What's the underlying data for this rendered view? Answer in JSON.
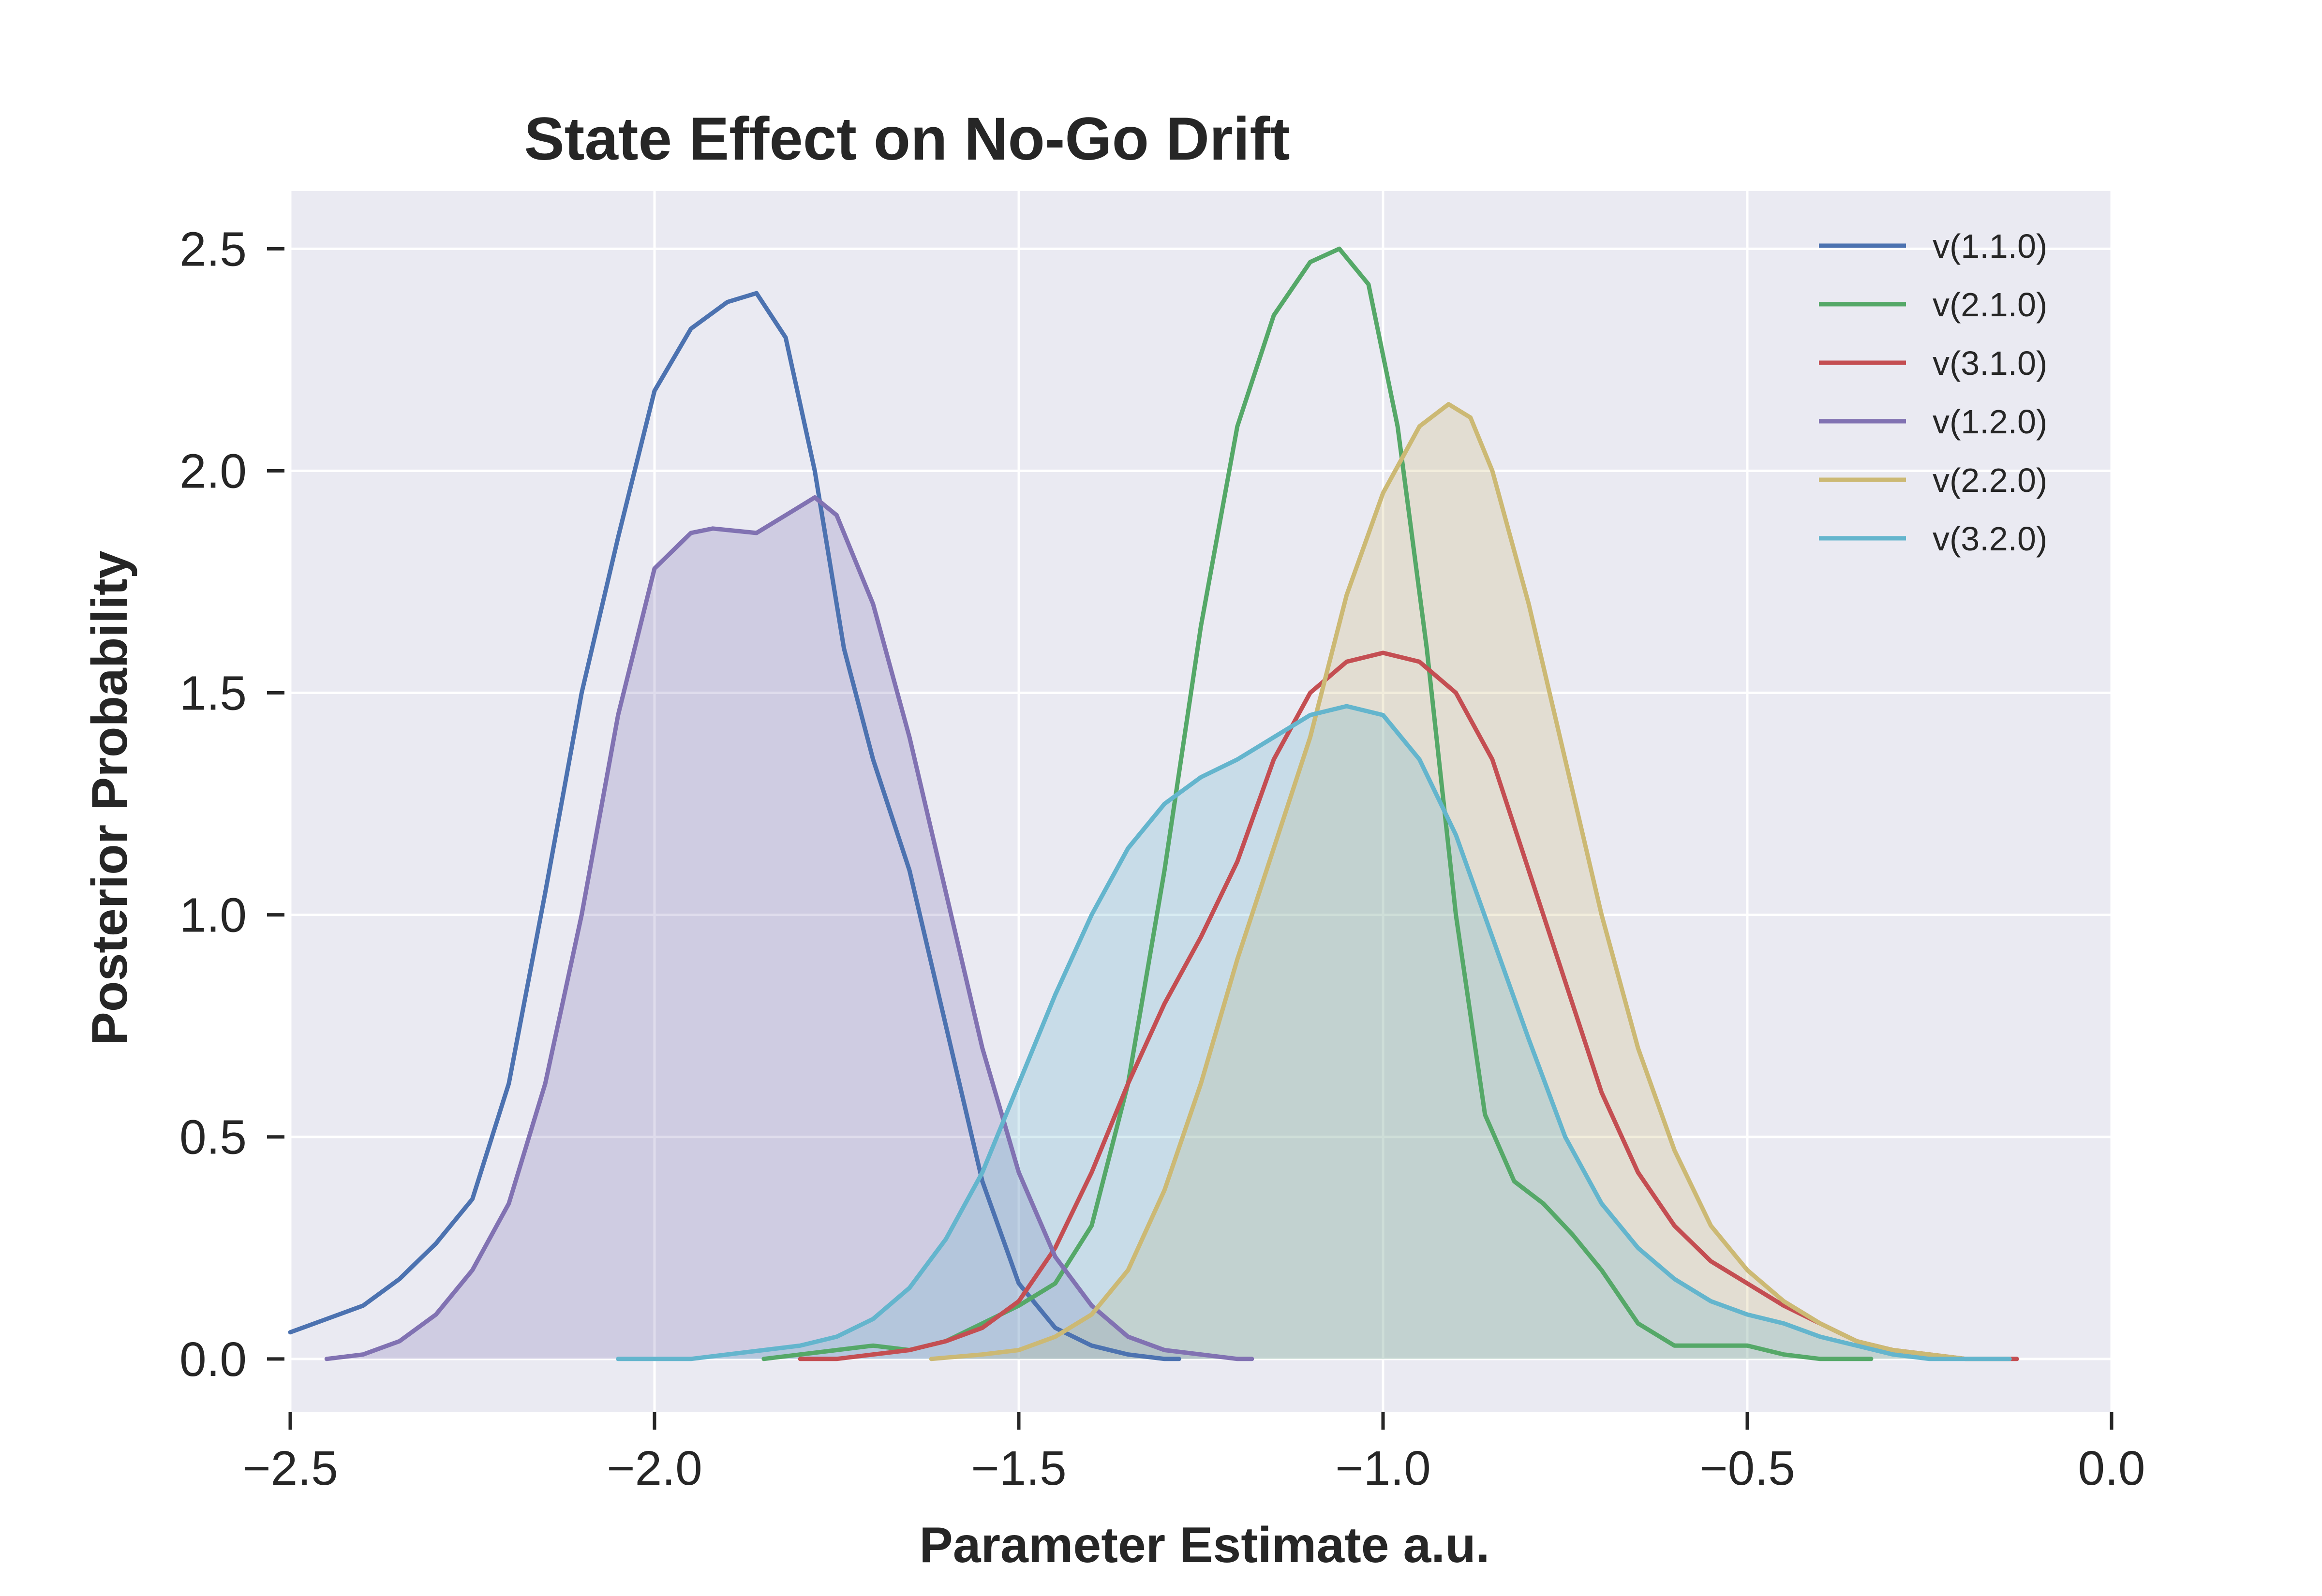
{
  "chart_data": {
    "type": "line",
    "title": "State Effect on No-Go Drift",
    "xlabel": "Parameter Estimate a.u.",
    "ylabel": "Posterior Probability",
    "xlim": [
      -2.5,
      0.0
    ],
    "ylim": [
      -0.12,
      2.63
    ],
    "xticks": [
      -2.5,
      -2.0,
      -1.5,
      -1.0,
      -0.5,
      0.0
    ],
    "xtick_labels": [
      "−2.5",
      "−2.0",
      "−1.5",
      "−1.0",
      "−0.5",
      "0.0"
    ],
    "yticks": [
      0.0,
      0.5,
      1.0,
      1.5,
      2.0,
      2.5
    ],
    "ytick_labels": [
      "0.0",
      "0.5",
      "1.0",
      "1.5",
      "2.0",
      "2.5"
    ],
    "grid": true,
    "background": "#eaeaf2",
    "legend_position": "top-right",
    "series": [
      {
        "name": "v(1.1.0)",
        "color": "#4c72b0",
        "filled": false,
        "x": [
          -2.5,
          -2.45,
          -2.4,
          -2.35,
          -2.3,
          -2.25,
          -2.2,
          -2.15,
          -2.1,
          -2.05,
          -2.0,
          -1.95,
          -1.9,
          -1.86,
          -1.82,
          -1.78,
          -1.74,
          -1.7,
          -1.65,
          -1.6,
          -1.55,
          -1.5,
          -1.45,
          -1.4,
          -1.35,
          -1.3,
          -1.28
        ],
        "y": [
          0.06,
          0.09,
          0.12,
          0.18,
          0.26,
          0.36,
          0.62,
          1.05,
          1.5,
          1.85,
          2.18,
          2.32,
          2.38,
          2.4,
          2.3,
          2.0,
          1.6,
          1.35,
          1.1,
          0.75,
          0.4,
          0.17,
          0.07,
          0.03,
          0.01,
          0.0,
          0.0
        ]
      },
      {
        "name": "v(2.1.0)",
        "color": "#55a868",
        "filled": false,
        "x": [
          -1.85,
          -1.8,
          -1.75,
          -1.7,
          -1.65,
          -1.6,
          -1.55,
          -1.5,
          -1.45,
          -1.4,
          -1.35,
          -1.3,
          -1.25,
          -1.2,
          -1.15,
          -1.1,
          -1.06,
          -1.02,
          -0.98,
          -0.94,
          -0.9,
          -0.86,
          -0.82,
          -0.78,
          -0.74,
          -0.7,
          -0.65,
          -0.6,
          -0.55,
          -0.5,
          -0.45,
          -0.4,
          -0.35,
          -0.33
        ],
        "y": [
          0.0,
          0.01,
          0.02,
          0.03,
          0.02,
          0.04,
          0.08,
          0.12,
          0.17,
          0.3,
          0.62,
          1.1,
          1.65,
          2.1,
          2.35,
          2.47,
          2.5,
          2.42,
          2.1,
          1.6,
          1.0,
          0.55,
          0.4,
          0.35,
          0.28,
          0.2,
          0.08,
          0.03,
          0.03,
          0.03,
          0.01,
          0.0,
          0.0,
          0.0
        ]
      },
      {
        "name": "v(3.1.0)",
        "color": "#c44e52",
        "filled": false,
        "x": [
          -1.8,
          -1.75,
          -1.7,
          -1.65,
          -1.6,
          -1.55,
          -1.5,
          -1.45,
          -1.4,
          -1.35,
          -1.3,
          -1.25,
          -1.2,
          -1.15,
          -1.1,
          -1.05,
          -1.0,
          -0.95,
          -0.9,
          -0.85,
          -0.8,
          -0.75,
          -0.7,
          -0.65,
          -0.6,
          -0.55,
          -0.5,
          -0.45,
          -0.4,
          -0.35,
          -0.3,
          -0.25,
          -0.2,
          -0.15,
          -0.13
        ],
        "y": [
          0.0,
          0.0,
          0.01,
          0.02,
          0.04,
          0.07,
          0.13,
          0.25,
          0.42,
          0.62,
          0.8,
          0.95,
          1.12,
          1.35,
          1.5,
          1.57,
          1.59,
          1.57,
          1.5,
          1.35,
          1.1,
          0.85,
          0.6,
          0.42,
          0.3,
          0.22,
          0.17,
          0.12,
          0.08,
          0.04,
          0.02,
          0.01,
          0.0,
          0.0,
          0.0
        ]
      },
      {
        "name": "v(1.2.0)",
        "color": "#8172b2",
        "filled": true,
        "x": [
          -2.45,
          -2.4,
          -2.35,
          -2.3,
          -2.25,
          -2.2,
          -2.15,
          -2.1,
          -2.05,
          -2.0,
          -1.95,
          -1.92,
          -1.86,
          -1.82,
          -1.78,
          -1.75,
          -1.7,
          -1.65,
          -1.6,
          -1.55,
          -1.5,
          -1.45,
          -1.4,
          -1.35,
          -1.3,
          -1.25,
          -1.2,
          -1.18
        ],
        "y": [
          0.0,
          0.01,
          0.04,
          0.1,
          0.2,
          0.35,
          0.62,
          1.0,
          1.45,
          1.78,
          1.86,
          1.87,
          1.86,
          1.9,
          1.94,
          1.9,
          1.7,
          1.4,
          1.05,
          0.7,
          0.42,
          0.23,
          0.12,
          0.05,
          0.02,
          0.01,
          0.0,
          0.0
        ]
      },
      {
        "name": "v(2.2.0)",
        "color": "#ccb974",
        "filled": true,
        "x": [
          -1.62,
          -1.55,
          -1.5,
          -1.45,
          -1.4,
          -1.35,
          -1.3,
          -1.25,
          -1.2,
          -1.15,
          -1.1,
          -1.05,
          -1.0,
          -0.95,
          -0.91,
          -0.88,
          -0.85,
          -0.8,
          -0.75,
          -0.7,
          -0.65,
          -0.6,
          -0.55,
          -0.5,
          -0.45,
          -0.4,
          -0.35,
          -0.3,
          -0.25,
          -0.2,
          -0.14
        ],
        "y": [
          0.0,
          0.01,
          0.02,
          0.05,
          0.1,
          0.2,
          0.38,
          0.62,
          0.9,
          1.15,
          1.4,
          1.72,
          1.95,
          2.1,
          2.15,
          2.12,
          2.0,
          1.7,
          1.35,
          1.0,
          0.7,
          0.47,
          0.3,
          0.2,
          0.13,
          0.08,
          0.04,
          0.02,
          0.01,
          0.0,
          0.0
        ]
      },
      {
        "name": "v(3.2.0)",
        "color": "#64b5cd",
        "filled": true,
        "x": [
          -2.05,
          -2.0,
          -1.95,
          -1.9,
          -1.85,
          -1.8,
          -1.75,
          -1.7,
          -1.65,
          -1.6,
          -1.55,
          -1.5,
          -1.45,
          -1.4,
          -1.35,
          -1.3,
          -1.25,
          -1.2,
          -1.15,
          -1.1,
          -1.05,
          -1.0,
          -0.95,
          -0.9,
          -0.85,
          -0.8,
          -0.75,
          -0.7,
          -0.65,
          -0.6,
          -0.55,
          -0.5,
          -0.45,
          -0.4,
          -0.35,
          -0.3,
          -0.25,
          -0.2,
          -0.14
        ],
        "y": [
          0.0,
          0.0,
          0.0,
          0.01,
          0.02,
          0.03,
          0.05,
          0.09,
          0.16,
          0.27,
          0.42,
          0.62,
          0.82,
          1.0,
          1.15,
          1.25,
          1.31,
          1.35,
          1.4,
          1.45,
          1.47,
          1.45,
          1.35,
          1.18,
          0.95,
          0.72,
          0.5,
          0.35,
          0.25,
          0.18,
          0.13,
          0.1,
          0.08,
          0.05,
          0.03,
          0.01,
          0.0,
          0.0,
          0.0
        ]
      }
    ]
  }
}
